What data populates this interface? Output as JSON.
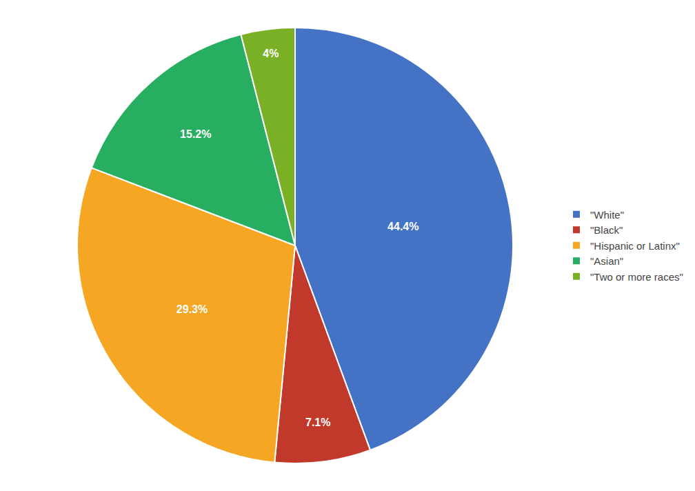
{
  "chart_data": {
    "type": "pie",
    "categories": [
      "\"White\"",
      "\"Black\"",
      "\"Hispanic or Latinx\"",
      "\"Asian\"",
      "\"Two or more races\""
    ],
    "values": [
      44.4,
      7.1,
      29.3,
      15.2,
      4.0
    ],
    "value_labels": [
      "44.4%",
      "7.1%",
      "29.3%",
      "15.2%",
      "4%"
    ],
    "colors": [
      "#4472C4",
      "#C0392B",
      "#F5A623",
      "#27AE60",
      "#7AB026"
    ],
    "data_labels": true,
    "legend": "right"
  }
}
